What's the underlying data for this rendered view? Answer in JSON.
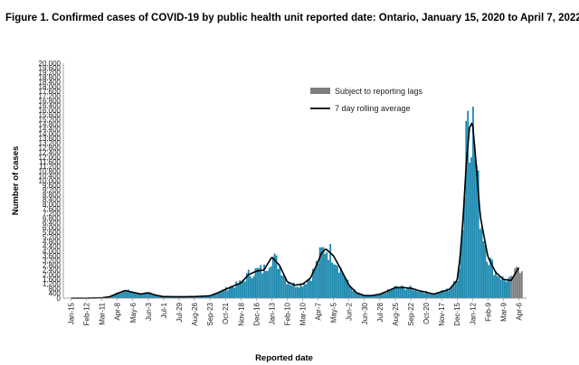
{
  "chart_data": {
    "type": "bar",
    "title": "Figure 1. Confirmed cases of COVID-19 by public health unit reported date: Ontario, January 15, 2020 to April 7, 2022",
    "xlabel": "Reported date",
    "ylabel": "Number of cases",
    "ylim": [
      0,
      20000
    ],
    "yticks": [
      0,
      400,
      800,
      1200,
      1600,
      2000,
      2400,
      2800,
      3200,
      3600,
      4000,
      4400,
      4800,
      5200,
      5600,
      6000,
      6400,
      6800,
      7200,
      7600,
      8000,
      8400,
      8800,
      9200,
      9600,
      10000,
      10400,
      10800,
      11200,
      11600,
      12000,
      12400,
      12800,
      13200,
      13600,
      14000,
      14400,
      14800,
      15200,
      15600,
      16000,
      16400,
      16800,
      17200,
      17600,
      18000,
      18400,
      18800,
      19200,
      19600,
      20000
    ],
    "ytick_labels": [
      "0",
      "400",
      "800",
      "1,200",
      "1,600",
      "2,000",
      "2,400",
      "2,800",
      "3,200",
      "3,600",
      "4,000",
      "4,400",
      "4,800",
      "5,200",
      "5,600",
      "6,000",
      "6,400",
      "6,800",
      "7,200",
      "7,600",
      "8,000",
      "8,400",
      "8,800",
      "9,200",
      "9,600",
      "10,000",
      "10,400",
      "10,800",
      "11,200",
      "11,600",
      "12,000",
      "12,400",
      "12,800",
      "13,200",
      "13,600",
      "14,000",
      "14,400",
      "14,800",
      "15,200",
      "15,600",
      "16,000",
      "16,400",
      "16,800",
      "17,200",
      "17,600",
      "18,000",
      "18,400",
      "18,800",
      "19,200",
      "19,600",
      "20,000"
    ],
    "xtick_labels": [
      "Jan-15",
      "Feb-12",
      "Mar-11",
      "Apr-8",
      "May-6",
      "Jun-3",
      "Jul-1",
      "Jul-29",
      "Aug-26",
      "Sep-23",
      "Oct-21",
      "Nov-18",
      "Dec-16",
      "Jan-13",
      "Feb-10",
      "Mar-10",
      "Apr-7",
      "May-5",
      "Jun-2",
      "Jun-30",
      "Jul-28",
      "Aug-25",
      "Sep-22",
      "Oct-20",
      "Nov-17",
      "Dec-15",
      "Jan-12",
      "Feb-9",
      "Mar-9",
      "Apr-6"
    ],
    "legend": {
      "position": "top-right",
      "entries": [
        "Subject to reporting lags",
        "7 day rolling average"
      ]
    },
    "series": [
      {
        "name": "7 day rolling average",
        "x_tick_index": [
          0,
          1,
          2,
          2.5,
          3,
          3.5,
          4,
          4.5,
          5,
          5.5,
          6,
          7,
          8,
          9,
          9.5,
          10,
          11,
          11.5,
          12,
          12.5,
          13,
          13.5,
          14,
          14.5,
          15,
          15.5,
          16,
          16.2,
          16.5,
          17,
          17.5,
          18,
          18.5,
          19,
          19.5,
          20,
          20.5,
          21,
          21.5,
          22,
          22.5,
          23,
          23.5,
          24,
          24.5,
          25,
          25.2,
          25.4,
          25.6,
          25.8,
          26,
          26.2,
          26.5,
          27,
          27.5,
          28,
          28.5,
          29
        ],
        "values": [
          0,
          0,
          30,
          120,
          400,
          650,
          500,
          350,
          450,
          250,
          130,
          120,
          130,
          200,
          450,
          750,
          1300,
          2000,
          2300,
          2400,
          3500,
          2800,
          1400,
          1100,
          1200,
          1700,
          3100,
          3800,
          4200,
          3600,
          2400,
          1100,
          450,
          220,
          220,
          330,
          600,
          900,
          900,
          850,
          650,
          500,
          350,
          550,
          750,
          1500,
          3500,
          7000,
          11500,
          14500,
          15000,
          12000,
          7000,
          3500,
          2200,
          1600,
          1500,
          2600
        ]
      },
      {
        "name": "Subject to reporting lags",
        "note": "Shaded final portion of daily bars (approx. last 3 weeks)"
      }
    ]
  }
}
